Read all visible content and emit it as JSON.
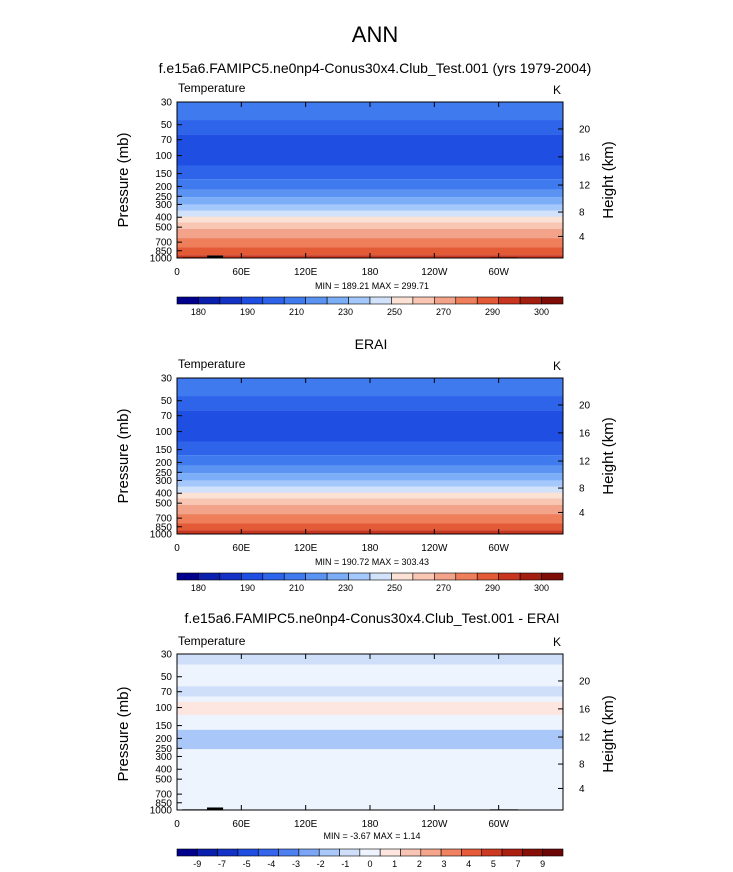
{
  "figure": {
    "title": "ANN"
  },
  "chart_data": [
    {
      "type": "heatmap",
      "title": "f.e15a6.FAMIPC5.ne0np4-Conus30x4.Club_Test.001 (yrs 1979-2004)",
      "variable": "Temperature",
      "units": "K",
      "ylabel": "Pressure (mb)",
      "ylabel_right": "Height (km)",
      "x_ticks": [
        "0",
        "60E",
        "120E",
        "180",
        "120W",
        "60W"
      ],
      "p_ticks": [
        "30",
        "50",
        "70",
        "100",
        "150",
        "200",
        "250",
        "300",
        "400",
        "500",
        "700",
        "850",
        "1000"
      ],
      "h_ticks": [
        "20",
        "16",
        "12",
        "8",
        "4"
      ],
      "stats": "MIN = 189.21  MAX = 299.71",
      "levels": [
        175,
        180,
        185,
        190,
        200,
        210,
        220,
        230,
        240,
        250,
        260,
        270,
        280,
        290,
        295,
        300
      ],
      "colorbar_labels": [
        "180",
        "190",
        "210",
        "230",
        "250",
        "270",
        "290",
        "300"
      ],
      "bands": [
        {
          "p_top": 30,
          "p_bot": 45,
          "level_index": 5
        },
        {
          "p_top": 45,
          "p_bot": 62,
          "level_index": 4
        },
        {
          "p_top": 62,
          "p_bot": 125,
          "level_index": 3
        },
        {
          "p_top": 125,
          "p_bot": 170,
          "level_index": 4
        },
        {
          "p_top": 170,
          "p_bot": 215,
          "level_index": 5
        },
        {
          "p_top": 215,
          "p_bot": 255,
          "level_index": 6
        },
        {
          "p_top": 255,
          "p_bot": 300,
          "level_index": 7
        },
        {
          "p_top": 300,
          "p_bot": 345,
          "level_index": 8
        },
        {
          "p_top": 345,
          "p_bot": 395,
          "level_index": 9
        },
        {
          "p_top": 395,
          "p_bot": 450,
          "level_index": 10
        },
        {
          "p_top": 450,
          "p_bot": 520,
          "level_index": 11
        },
        {
          "p_top": 520,
          "p_bot": 640,
          "level_index": 12
        },
        {
          "p_top": 640,
          "p_bot": 790,
          "level_index": 13
        },
        {
          "p_top": 790,
          "p_bot": 940,
          "level_index": 14
        },
        {
          "p_top": 940,
          "p_bot": 1000,
          "level_index": 15
        }
      ],
      "topography": [
        {
          "lon_start": 5,
          "lon_end": 28,
          "p_top": 985
        },
        {
          "lon_start": 28,
          "lon_end": 43,
          "p_top": 945
        },
        {
          "lon_start": 105,
          "lon_end": 112,
          "p_top": 990
        },
        {
          "lon_start": 292,
          "lon_end": 318,
          "p_top": 985
        }
      ]
    },
    {
      "type": "heatmap",
      "title": "ERAI",
      "variable": "Temperature",
      "units": "K",
      "ylabel": "Pressure (mb)",
      "ylabel_right": "Height (km)",
      "x_ticks": [
        "0",
        "60E",
        "120E",
        "180",
        "120W",
        "60W"
      ],
      "p_ticks": [
        "30",
        "50",
        "70",
        "100",
        "150",
        "200",
        "250",
        "300",
        "400",
        "500",
        "700",
        "850",
        "1000"
      ],
      "h_ticks": [
        "20",
        "16",
        "12",
        "8",
        "4"
      ],
      "stats": "MIN = 190.72  MAX = 303.43",
      "levels": [
        175,
        180,
        185,
        190,
        200,
        210,
        220,
        230,
        240,
        250,
        260,
        270,
        280,
        290,
        295,
        300
      ],
      "colorbar_labels": [
        "180",
        "190",
        "210",
        "230",
        "250",
        "270",
        "290",
        "300"
      ],
      "bands": [
        {
          "p_top": 30,
          "p_bot": 45,
          "level_index": 5
        },
        {
          "p_top": 45,
          "p_bot": 62,
          "level_index": 4
        },
        {
          "p_top": 62,
          "p_bot": 125,
          "level_index": 3
        },
        {
          "p_top": 125,
          "p_bot": 170,
          "level_index": 4
        },
        {
          "p_top": 170,
          "p_bot": 215,
          "level_index": 5
        },
        {
          "p_top": 215,
          "p_bot": 255,
          "level_index": 6
        },
        {
          "p_top": 255,
          "p_bot": 300,
          "level_index": 7
        },
        {
          "p_top": 300,
          "p_bot": 345,
          "level_index": 8
        },
        {
          "p_top": 345,
          "p_bot": 395,
          "level_index": 9
        },
        {
          "p_top": 395,
          "p_bot": 450,
          "level_index": 10
        },
        {
          "p_top": 450,
          "p_bot": 520,
          "level_index": 11
        },
        {
          "p_top": 520,
          "p_bot": 640,
          "level_index": 12
        },
        {
          "p_top": 640,
          "p_bot": 790,
          "level_index": 13
        },
        {
          "p_top": 790,
          "p_bot": 920,
          "level_index": 14
        },
        {
          "p_top": 920,
          "p_bot": 1000,
          "level_index": 15
        }
      ],
      "topography": []
    },
    {
      "type": "heatmap",
      "title": "f.e15a6.FAMIPC5.ne0np4-Conus30x4.Club_Test.001 - ERAI",
      "variable": "Temperature",
      "units": "K",
      "ylabel": "Pressure (mb)",
      "ylabel_right": "Height (km)",
      "x_ticks": [
        "0",
        "60E",
        "120E",
        "180",
        "120W",
        "60W"
      ],
      "p_ticks": [
        "30",
        "50",
        "70",
        "100",
        "150",
        "200",
        "250",
        "300",
        "400",
        "500",
        "700",
        "850",
        "1000"
      ],
      "h_ticks": [
        "20",
        "16",
        "12",
        "8",
        "4"
      ],
      "stats": "MIN = -3.67  MAX =  1.14",
      "levels": [
        -10,
        -9,
        -8,
        -7,
        -6,
        -5,
        -4,
        -3,
        -2,
        -1,
        0,
        1,
        2,
        3,
        4,
        5,
        6,
        7,
        8,
        9,
        10
      ],
      "colorbar_labels": [
        "-9",
        "-7",
        "-5",
        "-4",
        "-3",
        "-2",
        "-1",
        "0",
        "1",
        "2",
        "3",
        "4",
        "5",
        "7",
        "9"
      ],
      "bands": [
        {
          "p_top": 30,
          "p_bot": 38,
          "level_index": 8
        },
        {
          "p_top": 38,
          "p_bot": 62,
          "level_index": 9
        },
        {
          "p_top": 62,
          "p_bot": 78,
          "level_index": 8
        },
        {
          "p_top": 78,
          "p_bot": 88,
          "level_index": 9
        },
        {
          "p_top": 88,
          "p_bot": 118,
          "level_index": 10
        },
        {
          "p_top": 118,
          "p_bot": 165,
          "level_index": 9
        },
        {
          "p_top": 165,
          "p_bot": 255,
          "level_index": 7
        },
        {
          "p_top": 255,
          "p_bot": 1000,
          "level_index": 9
        }
      ],
      "topography": [
        {
          "lon_start": 5,
          "lon_end": 28,
          "p_top": 985
        },
        {
          "lon_start": 28,
          "lon_end": 43,
          "p_top": 945
        },
        {
          "lon_start": 105,
          "lon_end": 112,
          "p_top": 990
        },
        {
          "lon_start": 292,
          "lon_end": 318,
          "p_top": 985
        }
      ]
    }
  ],
  "colors": {
    "temperature_levels": [
      "#00008c",
      "#0a1fae",
      "#1532c6",
      "#1f4fe2",
      "#2d64ea",
      "#3f7aee",
      "#5b93f3",
      "#7cadf7",
      "#a4c8fb",
      "#d2e2fb",
      "#fbe2d4",
      "#f8c6b3",
      "#f3a389",
      "#ef7f5b",
      "#e35a37",
      "#c93620",
      "#a41e0f",
      "#7e0d08"
    ],
    "difference_levels": [
      "#00008c",
      "#0a1fae",
      "#1532c6",
      "#1f4fe2",
      "#3465ea",
      "#4e80ef",
      "#7aa6f5",
      "#a9c7f9",
      "#cfdffa",
      "#eef4fd",
      "#fde6e0",
      "#f8c5b5",
      "#f4a58b",
      "#ef8261",
      "#e65b39",
      "#cd3a22",
      "#ab2010",
      "#881008",
      "#6c0505"
    ],
    "topography": "#000000"
  }
}
